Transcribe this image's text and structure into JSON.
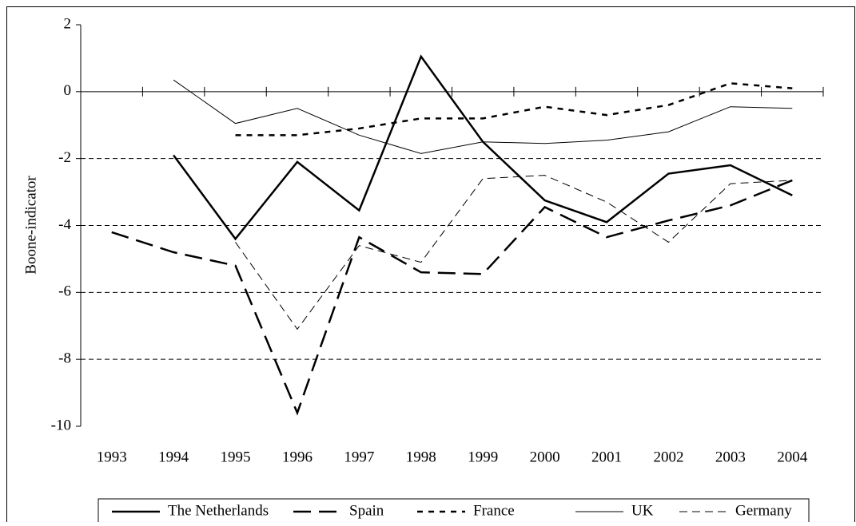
{
  "chart_data": {
    "type": "line",
    "y_label": "Boone-indicator",
    "categories": [
      "1993",
      "1994",
      "1995",
      "1996",
      "1997",
      "1998",
      "1999",
      "2000",
      "2001",
      "2002",
      "2003",
      "2004"
    ],
    "ylim": [
      -10,
      2
    ],
    "yticks": [
      -10,
      -8,
      -6,
      -4,
      -2,
      0,
      2
    ],
    "grid": true,
    "legend": "bottom",
    "series": [
      {
        "name": "The Netherlands",
        "color": "#000000",
        "width": 2.5,
        "dash": "solid",
        "values": [
          null,
          -1.9,
          -4.4,
          -2.1,
          -3.55,
          1.05,
          -1.5,
          -3.25,
          -3.9,
          -2.45,
          -2.2,
          -3.1
        ]
      },
      {
        "name": "Spain",
        "color": "#000000",
        "width": 2.5,
        "dash": "long",
        "values": [
          -4.2,
          -4.8,
          -5.2,
          -9.6,
          -4.35,
          -5.4,
          -5.45,
          -3.45,
          -4.35,
          -3.85,
          -3.4,
          -2.65
        ]
      },
      {
        "name": "France",
        "color": "#000000",
        "width": 2.5,
        "dash": "short",
        "values": [
          null,
          null,
          -1.3,
          -1.3,
          -1.1,
          -0.8,
          -0.8,
          -0.45,
          -0.7,
          -0.4,
          0.25,
          0.1
        ]
      },
      {
        "name": "UK",
        "color": "#000000",
        "width": 1,
        "dash": "solid",
        "values": [
          null,
          0.35,
          -0.95,
          -0.5,
          -1.3,
          -1.85,
          -1.5,
          -1.55,
          -1.45,
          -1.2,
          -0.45,
          -0.5
        ]
      },
      {
        "name": "Germany",
        "color": "#000000",
        "width": 1,
        "dash": "medium",
        "values": [
          null,
          null,
          -4.5,
          -7.1,
          -4.6,
          -5.1,
          -2.6,
          -2.5,
          -3.3,
          -4.5,
          -2.75,
          -2.65
        ]
      }
    ]
  }
}
